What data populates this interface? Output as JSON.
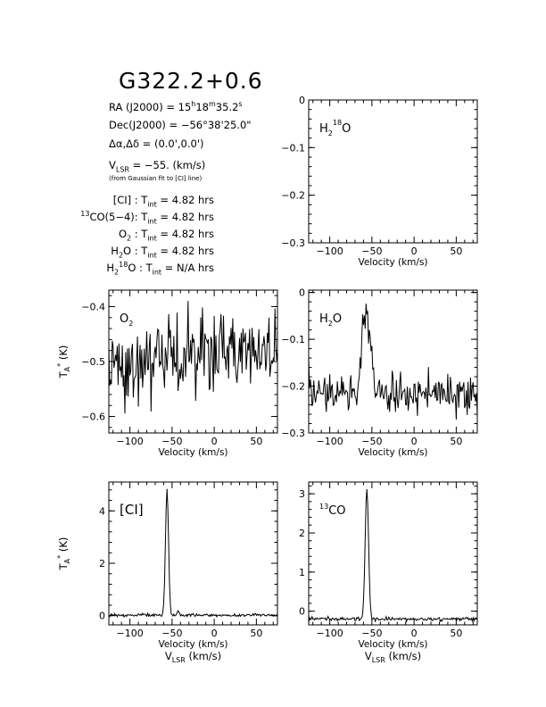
{
  "header": {
    "title": "G322.2+0.6",
    "ra": {
      "label": "RA (J2000) = ",
      "h": "15",
      "m": "18",
      "s": "35.2"
    },
    "dec": {
      "label": "Dec(J2000) = ",
      "value": "−56°38'25.0\""
    },
    "offset": {
      "label": "Δα,Δδ = ",
      "value": "(0.0',0.0')"
    },
    "vlsr": {
      "prefix": "V",
      "sub": "LSR",
      "value": " = −55. (km/s)"
    },
    "note": "(from Gaussian fit to [CI] line)",
    "integrations": [
      {
        "pre": "",
        "sup": "",
        "name": "[CI]",
        "sub": "",
        "post": " : ",
        "tint": "4.82 hrs"
      },
      {
        "pre": "",
        "sup": "13",
        "name": "CO(5−4)",
        "sub": "",
        "post": ": ",
        "tint": "4.82 hrs"
      },
      {
        "pre": "O",
        "sup": "",
        "name": "",
        "sub": "2",
        "post": " : ",
        "tint": "4.82 hrs"
      },
      {
        "pre": "H",
        "sup": "",
        "name": "O",
        "sub": "2",
        "post": " : ",
        "tint": "4.82 hrs"
      },
      {
        "pre": "H",
        "sup": "18",
        "name": "O",
        "sub": "2",
        "post": " : ",
        "tint": "N/A hrs"
      }
    ],
    "tint_label": "T",
    "tint_sub": "int",
    "tint_eq": " = "
  },
  "axes_common": {
    "xlabel": "Velocity (km/s)",
    "xlabel_bottom": "V",
    "xlabel_bottom_sub": "LSR",
    "xlabel_bottom_unit": " (km/s)",
    "ylabel": "T",
    "ylabel_sub": "A",
    "ylabel_sup": "*",
    "ylabel_unit": " (K)",
    "xticks": [
      -100,
      -50,
      0,
      50
    ],
    "xlim": [
      -125,
      75
    ]
  },
  "chart_data": [
    {
      "type": "line",
      "panel": "h218o",
      "label": "H2 18O",
      "xlim": [
        -125,
        75
      ],
      "ylim": [
        -0.3,
        0.0
      ],
      "yticks": [
        0,
        -0.1,
        -0.2,
        -0.3
      ],
      "ytick_labels": [
        "0",
        "−0.1",
        "−0.2",
        "−0.3"
      ],
      "series": []
    },
    {
      "type": "line",
      "panel": "o2",
      "label": "O2",
      "xlim": [
        -125,
        75
      ],
      "ylim": [
        -0.63,
        -0.37
      ],
      "yticks": [
        -0.4,
        -0.5,
        -0.6
      ],
      "ytick_labels": [
        "−0.4",
        "−0.5",
        "−0.6"
      ],
      "series": [
        {
          "baseline": -0.51,
          "noise": 0.035,
          "trend": 0.0002,
          "peaks": []
        }
      ]
    },
    {
      "type": "line",
      "panel": "h2o",
      "label": "H2O",
      "xlim": [
        -125,
        75
      ],
      "ylim": [
        -0.3,
        0.005
      ],
      "yticks": [
        0,
        -0.1,
        -0.2,
        -0.3
      ],
      "ytick_labels": [
        "0",
        "−0.1",
        "−0.2",
        "−0.3"
      ],
      "series": [
        {
          "baseline": -0.215,
          "noise": 0.022,
          "trend": 0,
          "peaks": [
            {
              "center": -57,
              "amp": 0.19,
              "sigma": 4.5
            }
          ]
        }
      ]
    },
    {
      "type": "line",
      "panel": "ci",
      "label": "[CI]",
      "xlim": [
        -125,
        75
      ],
      "ylim": [
        -0.35,
        5.1
      ],
      "yticks": [
        0,
        2,
        4
      ],
      "ytick_labels": [
        "0",
        "2",
        "4"
      ],
      "series": [
        {
          "baseline": 0.02,
          "noise": 0.03,
          "trend": 0,
          "peaks": [
            {
              "center": -56,
              "amp": 4.85,
              "sigma": 1.8
            },
            {
              "center": -43,
              "amp": 0.18,
              "sigma": 1.0
            }
          ]
        }
      ]
    },
    {
      "type": "line",
      "panel": "13co",
      "label": "13CO",
      "xlim": [
        -125,
        75
      ],
      "ylim": [
        -0.35,
        3.3
      ],
      "yticks": [
        0,
        1,
        2,
        3
      ],
      "ytick_labels": [
        "0",
        "1",
        "2",
        "3"
      ],
      "series": [
        {
          "baseline": -0.2,
          "noise": 0.025,
          "trend": 0,
          "peaks": [
            {
              "center": -56,
              "amp": 3.35,
              "sigma": 2.0
            }
          ]
        }
      ]
    }
  ]
}
